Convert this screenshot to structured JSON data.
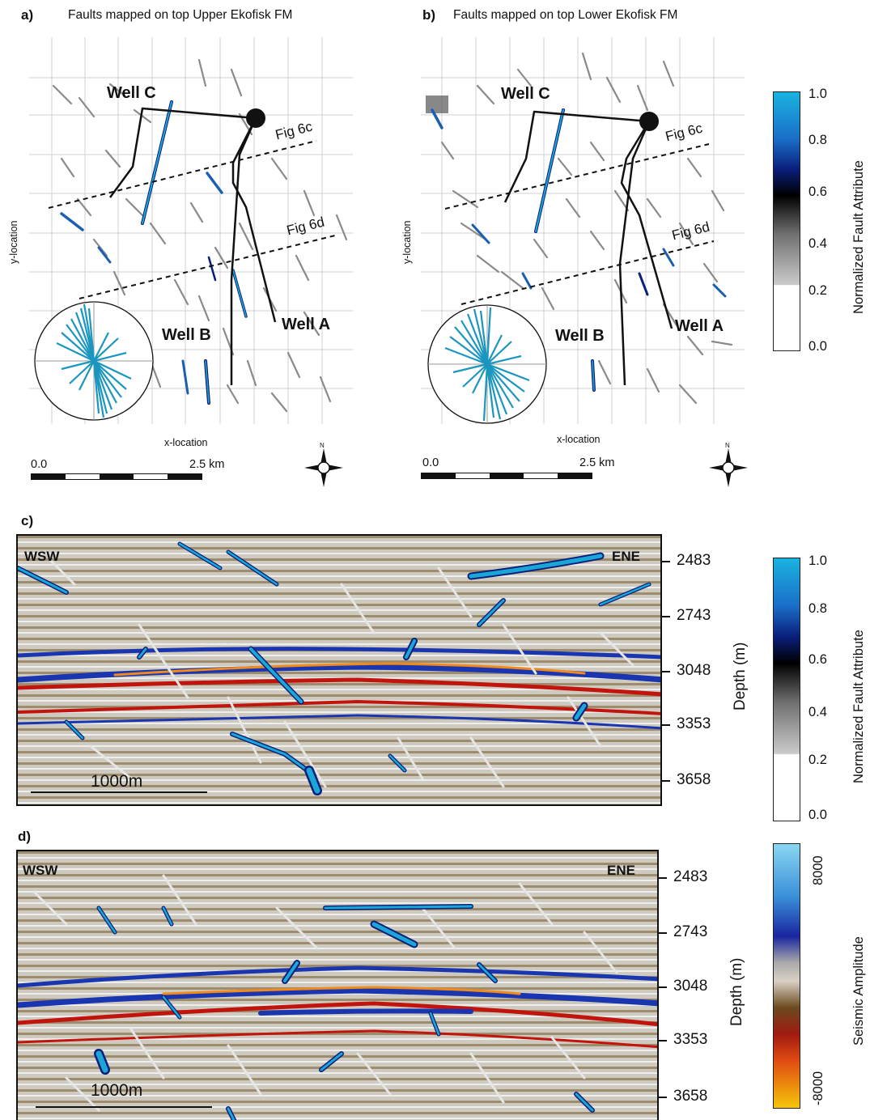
{
  "panel_a": {
    "label": "a)",
    "title": "Faults mapped on top Upper Ekofisk FM",
    "y_axis_label": "y-location",
    "x_axis_label": "x-location",
    "scale_start": "0.0",
    "scale_end": "2.5 km",
    "wells": [
      "Well C",
      "Well A",
      "Well B"
    ],
    "section_lines": [
      "Fig 6c",
      "Fig 6d"
    ],
    "north_label": "N"
  },
  "panel_b": {
    "label": "b)",
    "title": "Faults mapped on top Lower Ekofisk FM",
    "y_axis_label": "y-location",
    "x_axis_label": "x-location",
    "scale_start": "0.0",
    "scale_end": "2.5 km",
    "wells": [
      "Well C",
      "Well A",
      "Well B"
    ],
    "section_lines": [
      "Fig 6c",
      "Fig 6d"
    ],
    "north_label": "N"
  },
  "panel_c": {
    "label": "c)",
    "left_label": "WSW",
    "right_label": "ENE",
    "scale_bar_label": "1000m",
    "depth_ticks": [
      "2483",
      "2743",
      "3048",
      "3353",
      "3658"
    ],
    "depth_axis_label": "Depth (m)"
  },
  "panel_d": {
    "label": "d)",
    "left_label": "WSW",
    "right_label": "ENE",
    "scale_bar_label": "1000m",
    "depth_ticks": [
      "2483",
      "2743",
      "3048",
      "3353",
      "3658"
    ],
    "depth_axis_label": "Depth (m)"
  },
  "colorbar_fault_1": {
    "title": "Normalized Fault Attribute",
    "ticks": [
      "1.0",
      "0.8",
      "0.6",
      "0.4",
      "0.2",
      "0.0"
    ]
  },
  "colorbar_fault_2": {
    "title": "Normalized Fault Attribute",
    "ticks": [
      "1.0",
      "0.8",
      "0.6",
      "0.4",
      "0.2",
      "0.0"
    ]
  },
  "colorbar_amplitude": {
    "title": "Seismic Amplitude",
    "ticks": [
      "8000",
      "-8000"
    ]
  },
  "colors": {
    "fault_high": "#1aa7d8",
    "fault_mid": "#0a1f7a",
    "fault_low": "#555555",
    "reflector_blue": "#1a35b0",
    "reflector_red": "#c0140c",
    "reflector_orange": "#f08a1a"
  }
}
